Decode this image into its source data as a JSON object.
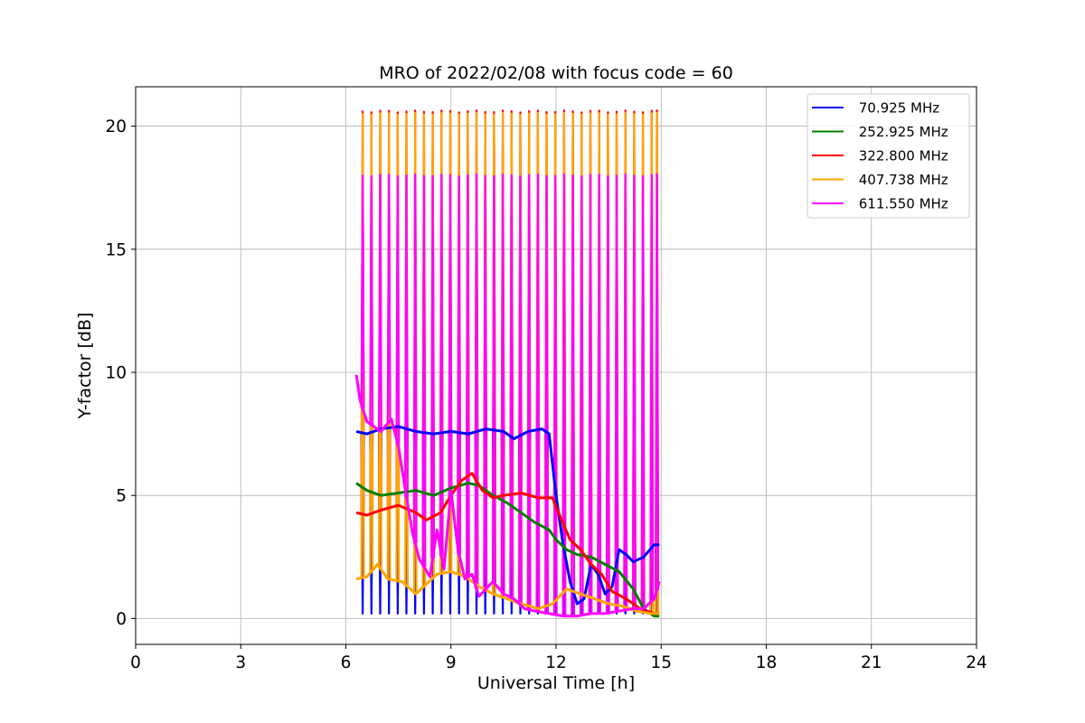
{
  "chart_data": {
    "type": "line",
    "title": "MRO of 2022/02/08 with focus code = 60",
    "xlabel": "Universal Time [h]",
    "ylabel": "Y-factor [dB]",
    "xlim": [
      0,
      24
    ],
    "ylim": [
      -1.05,
      21.6
    ],
    "x_ticks": [
      0,
      3,
      6,
      9,
      12,
      15,
      18,
      21,
      24
    ],
    "y_ticks": [
      0,
      5,
      10,
      15,
      20
    ],
    "grid": true,
    "legend_position": "top-right",
    "pulse_times_h": [
      6.48,
      6.73,
      6.98,
      7.23,
      7.48,
      7.73,
      7.98,
      8.23,
      8.48,
      8.73,
      8.98,
      9.23,
      9.48,
      9.73,
      9.98,
      10.23,
      10.48,
      10.73,
      10.98,
      11.23,
      11.48,
      11.73,
      11.98,
      12.23,
      12.48,
      12.73,
      12.98,
      13.23,
      13.48,
      13.73,
      13.98,
      14.23,
      14.48,
      14.73,
      14.88
    ],
    "series": [
      {
        "name": " 70.925 MHz",
        "color": "#0000ff",
        "x": [
          6.3,
          6.6,
          7.0,
          7.5,
          8.0,
          8.5,
          9.0,
          9.5,
          10.0,
          10.5,
          10.8,
          11.2,
          11.6,
          11.8,
          12.0,
          12.2,
          12.4,
          12.6,
          12.8,
          13.0,
          13.2,
          13.4,
          13.6,
          13.8,
          14.0,
          14.2,
          14.5,
          14.8,
          14.95
        ],
        "y": [
          7.6,
          7.5,
          7.7,
          7.8,
          7.6,
          7.5,
          7.6,
          7.5,
          7.7,
          7.6,
          7.3,
          7.6,
          7.7,
          7.5,
          5.0,
          3.0,
          1.5,
          0.6,
          0.8,
          2.2,
          1.8,
          1.0,
          1.3,
          2.8,
          2.6,
          2.3,
          2.5,
          3.0,
          3.0
        ],
        "pulse_min": 0.2
      },
      {
        "name": " 252.925 MHz",
        "color": "#008000",
        "x": [
          6.3,
          6.6,
          7.0,
          7.5,
          8.0,
          8.5,
          9.0,
          9.5,
          9.8,
          10.2,
          10.6,
          11.0,
          11.4,
          11.8,
          12.0,
          12.3,
          12.6,
          13.0,
          13.4,
          13.8,
          14.2,
          14.5,
          14.8,
          14.95
        ],
        "y": [
          5.5,
          5.2,
          5.0,
          5.1,
          5.2,
          5.0,
          5.3,
          5.5,
          5.4,
          5.0,
          4.7,
          4.3,
          3.9,
          3.6,
          3.2,
          2.8,
          2.6,
          2.5,
          2.2,
          1.9,
          1.2,
          0.4,
          0.1,
          0.1
        ]
      },
      {
        "name": " 322.800 MHz",
        "color": "#ff0000",
        "x": [
          6.3,
          6.6,
          7.0,
          7.5,
          8.0,
          8.3,
          8.7,
          9.0,
          9.3,
          9.6,
          9.9,
          10.2,
          10.5,
          11.0,
          11.5,
          11.9,
          12.1,
          12.4,
          12.7,
          13.0,
          13.3,
          13.6,
          14.0,
          14.4,
          14.8,
          14.95
        ],
        "y": [
          4.3,
          4.2,
          4.4,
          4.6,
          4.3,
          4.0,
          4.3,
          5.0,
          5.6,
          5.9,
          5.2,
          4.9,
          5.0,
          5.1,
          4.9,
          4.9,
          4.2,
          3.2,
          2.8,
          2.2,
          1.8,
          1.1,
          0.8,
          0.4,
          0.2,
          0.2
        ],
        "pulse_max": 20.6
      },
      {
        "name": " 407.738 MHz",
        "color": "#ffa500",
        "x": [
          6.3,
          6.6,
          6.9,
          7.2,
          7.6,
          8.0,
          8.3,
          8.6,
          9.0,
          9.4,
          9.8,
          10.2,
          10.6,
          11.0,
          11.5,
          11.9,
          12.3,
          12.7,
          13.1,
          13.5,
          13.9,
          14.3,
          14.7,
          14.95
        ],
        "y": [
          1.6,
          1.7,
          2.2,
          1.6,
          1.5,
          1.0,
          1.4,
          1.8,
          1.9,
          1.7,
          1.3,
          1.0,
          0.8,
          0.6,
          0.4,
          0.6,
          1.2,
          1.0,
          0.8,
          0.6,
          0.5,
          0.3,
          0.2,
          0.2
        ],
        "pulse_max": 20.5
      },
      {
        "name": " 611.550 MHz",
        "color": "#ff00ff",
        "x": [
          6.3,
          6.4,
          6.6,
          7.0,
          7.3,
          7.5,
          7.7,
          7.9,
          8.1,
          8.4,
          8.6,
          8.8,
          9.0,
          9.2,
          9.4,
          9.6,
          9.8,
          10.0,
          10.2,
          10.5,
          10.8,
          11.1,
          11.4,
          11.8,
          12.2,
          12.6,
          13.0,
          13.4,
          13.8,
          14.2,
          14.5,
          14.8,
          14.95
        ],
        "y": [
          9.9,
          8.9,
          8.0,
          7.6,
          8.1,
          7.0,
          5.2,
          3.5,
          2.4,
          1.7,
          3.6,
          2.0,
          5.2,
          2.8,
          1.6,
          1.8,
          0.9,
          1.2,
          1.5,
          1.0,
          0.8,
          0.4,
          0.3,
          0.2,
          0.1,
          0.1,
          0.2,
          0.2,
          0.3,
          0.4,
          0.4,
          0.8,
          1.5
        ],
        "pulse_max": 18.0
      }
    ]
  }
}
